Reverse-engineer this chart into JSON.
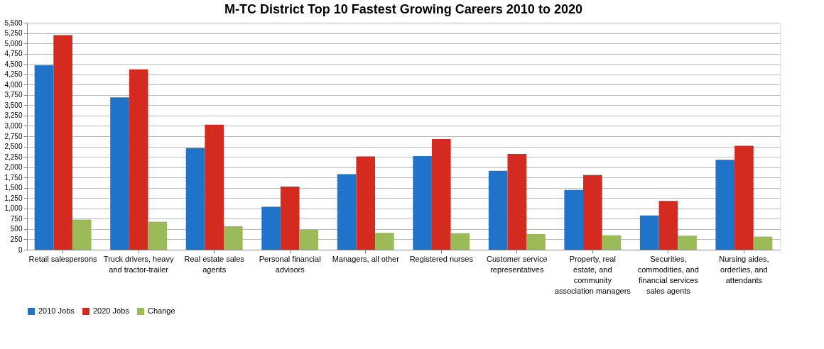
{
  "chart_data": {
    "type": "bar",
    "title": "M-TC District Top 10 Fastest Growing Careers 2010 to 2020",
    "categories": [
      "Retail salespersons",
      "Truck drivers, heavy and tractor-trailer",
      "Real estate sales agents",
      "Personal financial advisors",
      "Managers, all other",
      "Registered nurses",
      "Customer service representatives",
      "Property, real estate, and community association managers",
      "Securities, commodities, and financial services sales agents",
      "Nursing aides, orderlies, and attendants"
    ],
    "series": [
      {
        "name": "2010 Jobs",
        "color": "#1f74c9",
        "values": [
          4470,
          3690,
          2460,
          1040,
          1830,
          2270,
          1910,
          1450,
          830,
          2180
        ]
      },
      {
        "name": "2020 Jobs",
        "color": "#d42a20",
        "values": [
          5200,
          4370,
          3030,
          1530,
          2260,
          2680,
          2320,
          1810,
          1180,
          2520
        ]
      },
      {
        "name": "Change",
        "color": "#9bbb59",
        "values": [
          730,
          680,
          570,
          490,
          410,
          400,
          380,
          350,
          340,
          320
        ]
      }
    ],
    "ylim": [
      0,
      5500
    ],
    "yticks": [
      {
        "value": 0,
        "label": "0"
      },
      {
        "value": 250,
        "label": "250"
      },
      {
        "value": 500,
        "label": "500"
      },
      {
        "value": 750,
        "label": "750"
      },
      {
        "value": 1000,
        "label": "1,000"
      },
      {
        "value": 1250,
        "label": "1,250"
      },
      {
        "value": 1500,
        "label": "1,500"
      },
      {
        "value": 1750,
        "label": "1,750"
      },
      {
        "value": 2000,
        "label": "2,000"
      },
      {
        "value": 2250,
        "label": "2,250"
      },
      {
        "value": 2500,
        "label": "2,500"
      },
      {
        "value": 2750,
        "label": "2,750"
      },
      {
        "value": 3000,
        "label": "3,000"
      },
      {
        "value": 3250,
        "label": "3,250"
      },
      {
        "value": 3500,
        "label": "3,500"
      },
      {
        "value": 3750,
        "label": "3,750"
      },
      {
        "value": 4000,
        "label": "4,000"
      },
      {
        "value": 4250,
        "label": "4,250"
      },
      {
        "value": 4500,
        "label": "4,500"
      },
      {
        "value": 4750,
        "label": "4,750"
      },
      {
        "value": 5000,
        "label": "5,000"
      },
      {
        "value": 5250,
        "label": "5,250"
      },
      {
        "value": 5500,
        "label": "5,500"
      }
    ],
    "grid": "y",
    "legend": "bottom"
  }
}
